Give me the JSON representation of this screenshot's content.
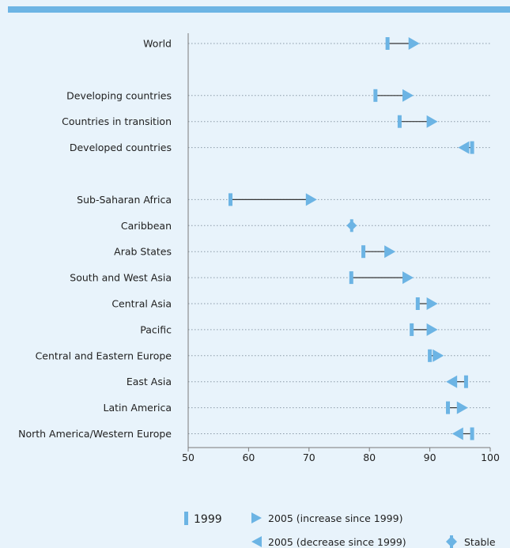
{
  "chart_data": {
    "type": "dumbbell",
    "xlim": [
      50,
      100
    ],
    "x_ticks": [
      50,
      60,
      70,
      80,
      90,
      100
    ],
    "colors": {
      "marker": "#6cb4e4",
      "gridline": "#8a9aa8",
      "connector": "#333333",
      "band": "#6cb4e4"
    },
    "categories": [
      {
        "label": "World",
        "v1999": 83,
        "v2005": 87,
        "change": "increase"
      },
      {
        "label": "",
        "v1999": null,
        "v2005": null,
        "change": "none"
      },
      {
        "label": "Developing countries",
        "v1999": 81,
        "v2005": 86,
        "change": "increase"
      },
      {
        "label": "Countries in transition",
        "v1999": 85,
        "v2005": 90,
        "change": "increase"
      },
      {
        "label": "Developed countries",
        "v1999": 97,
        "v2005": 96,
        "change": "decrease"
      },
      {
        "label": "",
        "v1999": null,
        "v2005": null,
        "change": "none"
      },
      {
        "label": "Sub-Saharan Africa",
        "v1999": 57,
        "v2005": 70,
        "change": "increase"
      },
      {
        "label": "Caribbean",
        "v1999": 77,
        "v2005": 77,
        "change": "stable"
      },
      {
        "label": "Arab States",
        "v1999": 79,
        "v2005": 83,
        "change": "increase"
      },
      {
        "label": "South and West Asia",
        "v1999": 77,
        "v2005": 86,
        "change": "increase"
      },
      {
        "label": "Central Asia",
        "v1999": 88,
        "v2005": 90,
        "change": "increase"
      },
      {
        "label": "Pacific",
        "v1999": 87,
        "v2005": 90,
        "change": "increase"
      },
      {
        "label": "Central and Eastern Europe",
        "v1999": 90,
        "v2005": 91,
        "change": "increase"
      },
      {
        "label": "East Asia",
        "v1999": 96,
        "v2005": 94,
        "change": "decrease"
      },
      {
        "label": "Latin America",
        "v1999": 93,
        "v2005": 95,
        "change": "increase"
      },
      {
        "label": "North America/Western Europe",
        "v1999": 97,
        "v2005": 95,
        "change": "decrease"
      }
    ],
    "legend": {
      "item_1999": "1999",
      "item_increase": "2005 (increase since 1999)",
      "item_decrease": "2005 (decrease since 1999)",
      "item_stable": "Stable"
    }
  }
}
